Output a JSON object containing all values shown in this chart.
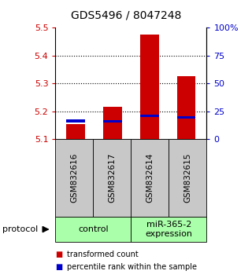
{
  "title": "GDS5496 / 8047248",
  "samples": [
    "GSM832616",
    "GSM832617",
    "GSM832614",
    "GSM832615"
  ],
  "group_name_1": "control",
  "group_name_2": "miR-365-2\nexpression",
  "red_values": [
    5.155,
    5.215,
    5.475,
    5.325
  ],
  "blue_values": [
    5.165,
    5.163,
    5.183,
    5.178
  ],
  "ylim_left": [
    5.1,
    5.5
  ],
  "ylim_right": [
    0,
    100
  ],
  "yticks_left": [
    5.1,
    5.2,
    5.3,
    5.4,
    5.5
  ],
  "ytick_left_labels": [
    "5.1",
    "5.2",
    "5.3",
    "5.4",
    "5.5"
  ],
  "yticks_right": [
    0,
    25,
    50,
    75,
    100
  ],
  "ytick_right_labels": [
    "0",
    "25",
    "50",
    "75",
    "100%"
  ],
  "grid_lines": [
    5.2,
    5.3,
    5.4
  ],
  "bar_width": 0.5,
  "bar_base": 5.1,
  "left_color": "#cc0000",
  "right_color": "#0000cc",
  "gray_color": "#c8c8c8",
  "green_color": "#aaffaa",
  "legend_red": "transformed count",
  "legend_blue": "percentile rank within the sample",
  "protocol_label": "protocol"
}
